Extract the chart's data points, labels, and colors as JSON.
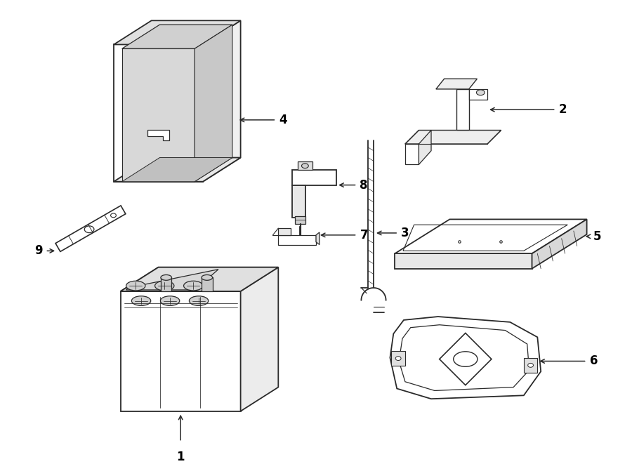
{
  "background_color": "#ffffff",
  "line_color": "#2a2a2a",
  "text_color": "#000000",
  "fig_width": 9.0,
  "fig_height": 6.61,
  "dpi": 100
}
